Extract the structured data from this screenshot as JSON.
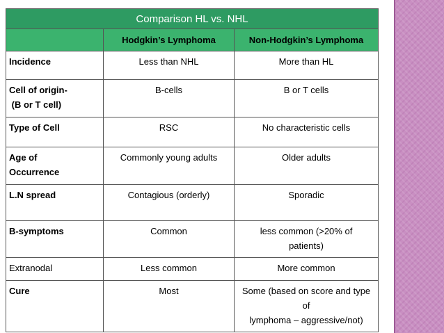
{
  "table": {
    "title": "Comparison HL vs. NHL",
    "headers": [
      "",
      "Hodgkin’s Lymphoma",
      "Non-Hodgkin’s Lymphoma"
    ],
    "rows": [
      {
        "label_lines": [
          "Incidence"
        ],
        "hl": "Less than NHL",
        "nhl": "More than HL"
      },
      {
        "label_lines": [
          "Cell of origin-",
          " (B or T cell)"
        ],
        "hl": "B-cells",
        "nhl": "B or T cells"
      },
      {
        "label_lines": [
          "Type of Cell"
        ],
        "hl": "RSC",
        "nhl": "No characteristic cells"
      },
      {
        "label_lines": [
          "Age of",
          "Occurrence"
        ],
        "hl": "Commonly young adults",
        "nhl": "Older adults"
      },
      {
        "label_lines": [
          "L.N spread"
        ],
        "hl": "Contagious (orderly)",
        "nhl": "Sporadic"
      },
      {
        "label_lines": [
          "B-symptoms"
        ],
        "hl": "Common",
        "nhl_lines": [
          "less common (>20% of",
          "patients)"
        ]
      },
      {
        "label_lines": [
          "Extranodal"
        ],
        "hl": "Less common",
        "nhl": "More common"
      },
      {
        "label_lines": [
          "Cure"
        ],
        "hl": "Most",
        "nhl_lines": [
          "Some (based on score and type of",
          "lymphoma – aggressive/not)"
        ]
      }
    ]
  },
  "colors": {
    "title_bg": "#2e9b62",
    "header_bg": "#3bb36e",
    "sidebar": "#c98fc2"
  }
}
